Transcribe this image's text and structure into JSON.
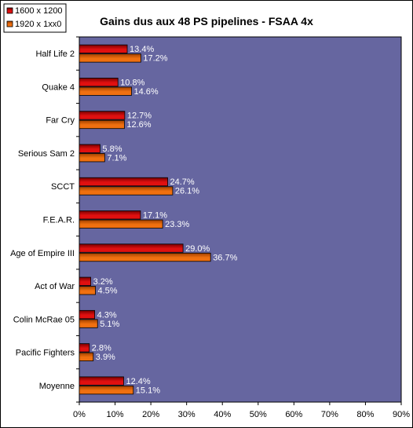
{
  "chart_data": {
    "type": "bar",
    "orientation": "horizontal",
    "title": "Gains dus aux 48 PS pipelines - FSAA 4x",
    "xlabel": "",
    "ylabel": "",
    "categories": [
      "Half Life 2",
      "Quake 4",
      "Far Cry",
      "Serious Sam 2",
      "SCCT",
      "F.E.A.R.",
      "Age of Empire III",
      "Act of War",
      "Colin McRae 05",
      "Pacific Fighters",
      "Moyenne"
    ],
    "series": [
      {
        "name": "1600 x 1200",
        "color": "#e01010",
        "values": [
          13.4,
          10.8,
          12.7,
          5.8,
          24.7,
          17.1,
          29.0,
          3.2,
          4.3,
          2.8,
          12.4
        ],
        "labels": [
          "13.4%",
          "10.8%",
          "12.7%",
          "5.8%",
          "24.7%",
          "17.1%",
          "29.0%",
          "3.2%",
          "4.3%",
          "2.8%",
          "12.4%"
        ]
      },
      {
        "name": "1920 x 1xx0",
        "color": "#f07010",
        "values": [
          17.2,
          14.6,
          12.6,
          7.1,
          26.1,
          23.3,
          36.7,
          4.5,
          5.1,
          3.9,
          15.1
        ],
        "labels": [
          "17.2%",
          "14.6%",
          "12.6%",
          "7.1%",
          "26.1%",
          "23.3%",
          "36.7%",
          "4.5%",
          "5.1%",
          "3.9%",
          "15.1%"
        ]
      }
    ],
    "xlim": [
      0,
      90
    ],
    "x_ticks": [
      0,
      10,
      20,
      30,
      40,
      50,
      60,
      70,
      80,
      90
    ],
    "x_tick_labels": [
      "0%",
      "10%",
      "20%",
      "30%",
      "40%",
      "50%",
      "60%",
      "70%",
      "80%",
      "90%"
    ],
    "grid": false,
    "legend_position": "top-left",
    "plot_background": "#6666a0"
  }
}
